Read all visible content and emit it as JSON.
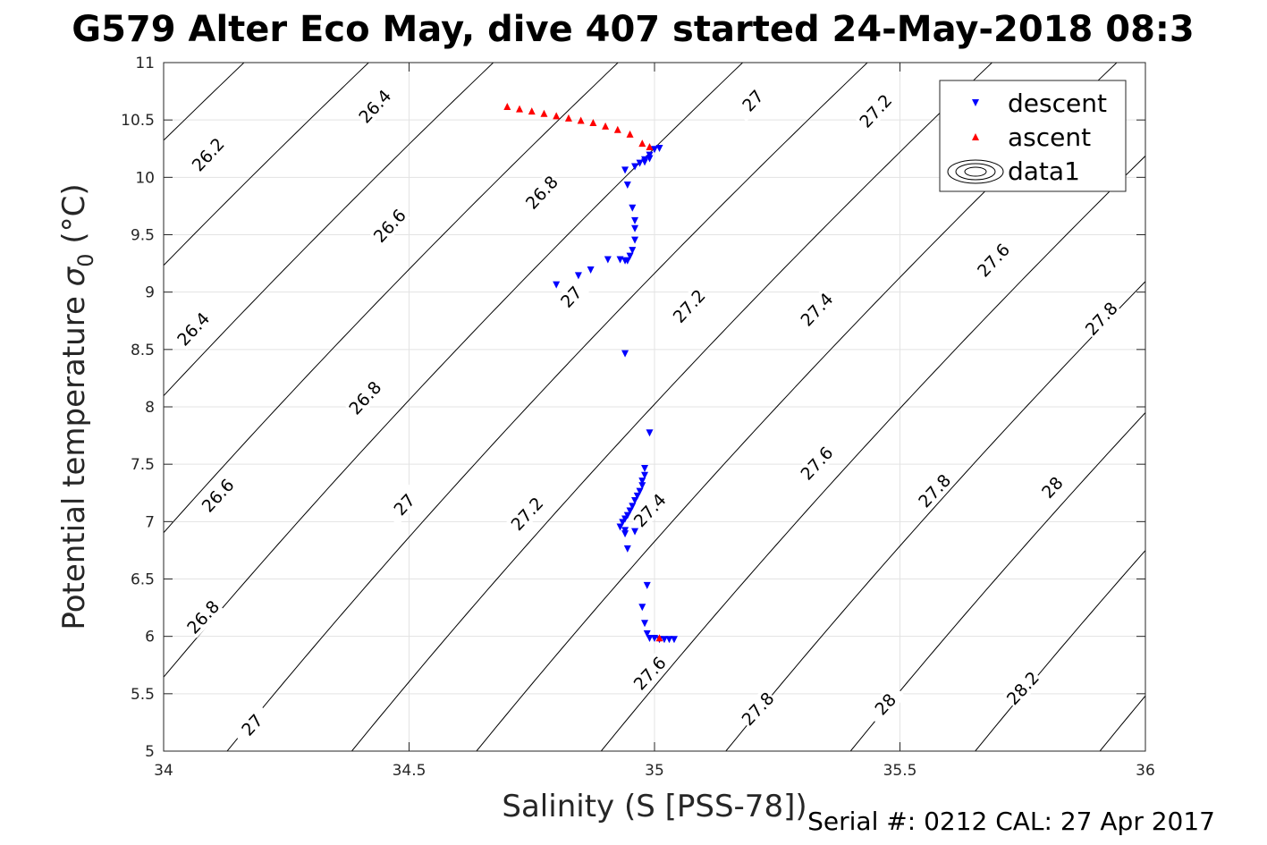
{
  "chart_data": {
    "type": "scatter",
    "title": "G579 Alter Eco May, dive 407 started 24-May-2018 08:3",
    "xlabel": "Salinity (S [PSS-78])",
    "ylabel_main": "Potential temperature ",
    "ylabel_symbol": "σ",
    "ylabel_sub": "0",
    "ylabel_tail": " (°C)",
    "footer": "Serial #: 0212  CAL: 27 Apr 2017",
    "xlim": [
      34,
      36
    ],
    "ylim": [
      5,
      11
    ],
    "x_ticks": [
      34,
      34.5,
      35,
      35.5,
      36
    ],
    "x_tick_labels": [
      "34",
      "34.5",
      "35",
      "35.5",
      "36"
    ],
    "y_ticks": [
      5,
      5.5,
      6,
      6.5,
      7,
      7.5,
      8,
      8.5,
      9,
      9.5,
      10,
      10.5,
      11
    ],
    "y_tick_labels": [
      "5",
      "5.5",
      "6",
      "6.5",
      "7",
      "7.5",
      "8",
      "8.5",
      "9",
      "9.5",
      "10",
      "10.5",
      "11"
    ],
    "grid": true,
    "legend_position": "top-right",
    "legend": [
      "descent",
      "ascent",
      "data1"
    ],
    "series": [
      {
        "name": "descent",
        "marker": "triangle-down",
        "color": "#0000ff",
        "points": [
          [
            35.01,
            10.26
          ],
          [
            35.0,
            10.25
          ],
          [
            34.99,
            10.2
          ],
          [
            34.99,
            10.17
          ],
          [
            34.98,
            10.16
          ],
          [
            34.98,
            10.14
          ],
          [
            34.97,
            10.13
          ],
          [
            34.96,
            10.1
          ],
          [
            34.94,
            10.07
          ],
          [
            34.945,
            9.94
          ],
          [
            34.955,
            9.74
          ],
          [
            34.96,
            9.63
          ],
          [
            34.96,
            9.56
          ],
          [
            34.96,
            9.46
          ],
          [
            34.955,
            9.37
          ],
          [
            34.95,
            9.32
          ],
          [
            34.945,
            9.28
          ],
          [
            34.94,
            9.28
          ],
          [
            34.93,
            9.29
          ],
          [
            34.905,
            9.29
          ],
          [
            34.87,
            9.2
          ],
          [
            34.845,
            9.15
          ],
          [
            34.8,
            9.07
          ],
          [
            34.94,
            8.47
          ],
          [
            34.99,
            7.78
          ],
          [
            34.98,
            7.47
          ],
          [
            34.98,
            7.41
          ],
          [
            34.975,
            7.36
          ],
          [
            34.975,
            7.32
          ],
          [
            34.97,
            7.27
          ],
          [
            34.965,
            7.23
          ],
          [
            34.96,
            7.19
          ],
          [
            34.955,
            7.14
          ],
          [
            34.95,
            7.1
          ],
          [
            34.945,
            7.06
          ],
          [
            34.94,
            7.03
          ],
          [
            34.935,
            7.0
          ],
          [
            34.93,
            6.96
          ],
          [
            34.94,
            6.93
          ],
          [
            34.94,
            6.9
          ],
          [
            34.96,
            6.92
          ],
          [
            34.945,
            6.77
          ],
          [
            34.985,
            6.45
          ],
          [
            34.975,
            6.26
          ],
          [
            34.98,
            6.12
          ],
          [
            34.985,
            6.03
          ],
          [
            34.99,
            5.99
          ],
          [
            35.0,
            5.99
          ],
          [
            35.01,
            5.98
          ],
          [
            35.02,
            5.98
          ],
          [
            35.03,
            5.98
          ],
          [
            35.04,
            5.98
          ]
        ]
      },
      {
        "name": "ascent",
        "marker": "triangle-up",
        "color": "#ff0000",
        "points": [
          [
            34.7,
            10.61
          ],
          [
            34.725,
            10.59
          ],
          [
            34.75,
            10.57
          ],
          [
            34.775,
            10.55
          ],
          [
            34.8,
            10.53
          ],
          [
            34.825,
            10.51
          ],
          [
            34.85,
            10.49
          ],
          [
            34.875,
            10.47
          ],
          [
            34.9,
            10.44
          ],
          [
            34.925,
            10.41
          ],
          [
            34.95,
            10.37
          ],
          [
            34.975,
            10.29
          ],
          [
            34.99,
            10.26
          ],
          [
            35.01,
            5.98
          ]
        ]
      }
    ],
    "contour_levels": [
      26.2,
      26.4,
      26.6,
      26.8,
      27,
      27.2,
      27.4,
      27.6,
      27.8,
      28,
      28.2
    ],
    "contour_labels": [
      {
        "level": "26.2",
        "x": 34.09,
        "y": 10.2
      },
      {
        "level": "26.4",
        "x": 34.43,
        "y": 10.62
      },
      {
        "level": "26.4",
        "x": 34.06,
        "y": 8.68
      },
      {
        "level": "26.6",
        "x": 34.46,
        "y": 9.58
      },
      {
        "level": "26.6",
        "x": 34.11,
        "y": 7.23
      },
      {
        "level": "26.8",
        "x": 34.77,
        "y": 9.87
      },
      {
        "level": "26.8",
        "x": 34.41,
        "y": 8.08
      },
      {
        "level": "26.8",
        "x": 34.08,
        "y": 6.17
      },
      {
        "level": "27",
        "x": 35.2,
        "y": 10.67
      },
      {
        "level": "27",
        "x": 34.83,
        "y": 8.96
      },
      {
        "level": "27",
        "x": 34.49,
        "y": 7.15
      },
      {
        "level": "27",
        "x": 34.18,
        "y": 5.23
      },
      {
        "level": "27.2",
        "x": 35.45,
        "y": 10.58
      },
      {
        "level": "27.2",
        "x": 35.07,
        "y": 8.88
      },
      {
        "level": "27.2",
        "x": 34.74,
        "y": 7.07
      },
      {
        "level": "27.4",
        "x": 35.33,
        "y": 8.85
      },
      {
        "level": "27.4",
        "x": 34.99,
        "y": 7.1
      },
      {
        "level": "27.6",
        "x": 35.69,
        "y": 9.28
      },
      {
        "level": "27.6",
        "x": 35.33,
        "y": 7.51
      },
      {
        "level": "27.6",
        "x": 34.99,
        "y": 5.68
      },
      {
        "level": "27.8",
        "x": 35.91,
        "y": 8.77
      },
      {
        "level": "27.8",
        "x": 35.57,
        "y": 7.27
      },
      {
        "level": "27.8",
        "x": 35.21,
        "y": 5.37
      },
      {
        "level": "28",
        "x": 35.81,
        "y": 7.3
      },
      {
        "level": "28",
        "x": 35.47,
        "y": 5.41
      },
      {
        "level": "28.2",
        "x": 35.75,
        "y": 5.55
      }
    ]
  }
}
